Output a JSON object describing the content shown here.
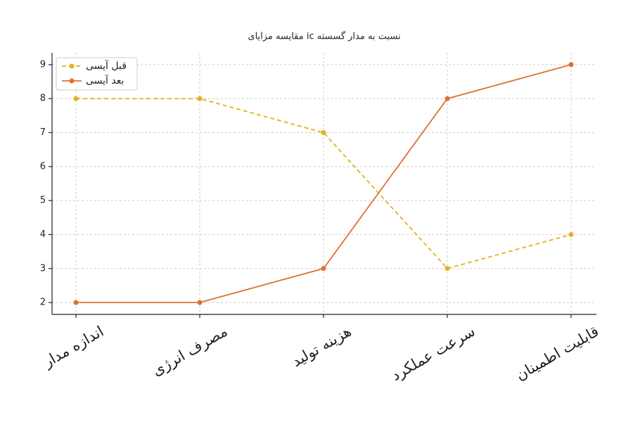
{
  "chart_data": {
    "type": "line",
    "title": "مقایسه مزایای ic نسبت به مدار گسسته",
    "categories": [
      "اندازه مدار",
      "مصرف انرژی",
      "هزینه تولید",
      "سرعت عملکرد",
      "قابلیت اطمینان"
    ],
    "series": [
      {
        "name": "قبل آیسی",
        "color": "#e8b020",
        "dashed": true,
        "values": [
          8,
          8,
          7,
          3,
          4
        ]
      },
      {
        "name": "بعد آیسی",
        "color": "#e07030",
        "dashed": false,
        "values": [
          2,
          2,
          3,
          8,
          9
        ]
      }
    ],
    "ylim": [
      1.65,
      9.35
    ],
    "yticks": [
      2,
      3,
      4,
      5,
      6,
      7,
      8,
      9
    ],
    "grid": true,
    "legend": "upper-left"
  }
}
